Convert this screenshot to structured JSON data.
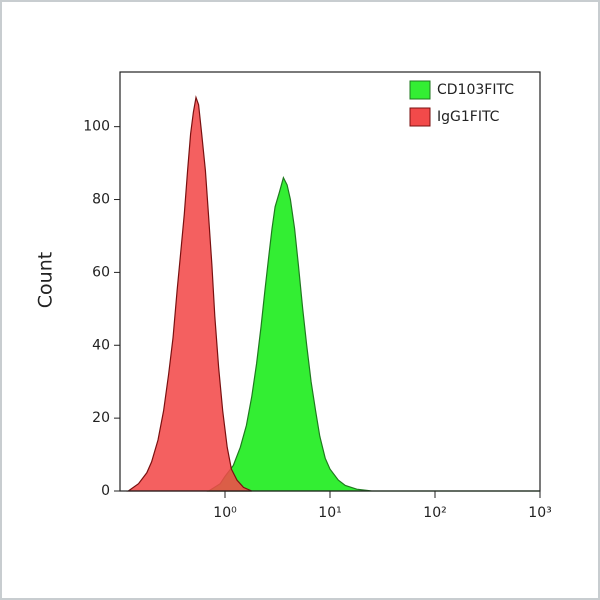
{
  "chart_data": {
    "type": "histogram-area",
    "ylabel": "Count",
    "xscale": "log",
    "xlim": [
      0.1,
      1000
    ],
    "ylim": [
      0,
      115
    ],
    "xticks": [
      {
        "value": 1,
        "label": "10⁰"
      },
      {
        "value": 10,
        "label": "10¹"
      },
      {
        "value": 100,
        "label": "10²"
      },
      {
        "value": 1000,
        "label": "10³"
      }
    ],
    "yticks": [
      0,
      20,
      40,
      60,
      80,
      100
    ],
    "legend": "upper right",
    "series": [
      {
        "name": "CD103FITC",
        "color": "#33ee33",
        "edge": "#1f7a1f",
        "x": [
          0.7,
          0.9,
          1.0,
          1.2,
          1.4,
          1.6,
          1.8,
          2.0,
          2.2,
          2.4,
          2.6,
          2.8,
          3.0,
          3.3,
          3.6,
          3.9,
          4.2,
          4.6,
          5.0,
          5.5,
          6.0,
          6.6,
          7.3,
          8.0,
          9.0,
          10,
          12,
          14,
          18,
          25,
          100,
          1000
        ],
        "values": [
          0,
          2,
          4,
          7,
          12,
          18,
          26,
          35,
          45,
          55,
          64,
          72,
          78,
          82,
          86,
          84,
          80,
          72,
          62,
          50,
          40,
          30,
          22,
          15,
          9,
          6,
          3,
          1.5,
          0.5,
          0,
          0,
          0
        ]
      },
      {
        "name": "IgG1FITC",
        "color": "#f24a4a",
        "edge": "#7a1010",
        "x": [
          0.12,
          0.15,
          0.18,
          0.2,
          0.23,
          0.26,
          0.29,
          0.32,
          0.35,
          0.38,
          0.41,
          0.44,
          0.47,
          0.5,
          0.53,
          0.56,
          0.6,
          0.65,
          0.7,
          0.75,
          0.8,
          0.87,
          0.95,
          1.05,
          1.15,
          1.3,
          1.5,
          1.8
        ],
        "values": [
          0,
          2,
          5,
          8,
          14,
          22,
          32,
          42,
          55,
          66,
          76,
          88,
          98,
          104,
          108,
          106,
          98,
          88,
          75,
          62,
          48,
          34,
          22,
          12,
          6,
          3,
          1,
          0
        ]
      }
    ]
  }
}
